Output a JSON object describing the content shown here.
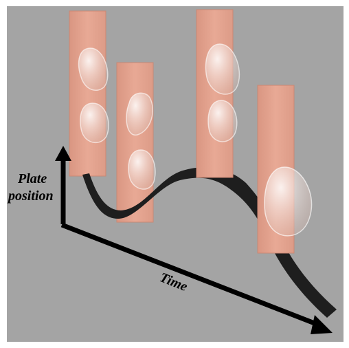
{
  "labels": {
    "y_axis_line1": "Plate",
    "y_axis_line2": "position",
    "x_axis": "Time"
  },
  "colors": {
    "background": "#a4a4a4",
    "plate": "#e4a28f",
    "plate_edge": "#c98774",
    "ribbon": "#1e1e1e",
    "axis": "#000000"
  },
  "plates": [
    {
      "name": "plate-1",
      "droplets": 2
    },
    {
      "name": "plate-2",
      "droplets": 2
    },
    {
      "name": "plate-3",
      "droplets": 2
    },
    {
      "name": "plate-4",
      "droplets": 1
    }
  ]
}
